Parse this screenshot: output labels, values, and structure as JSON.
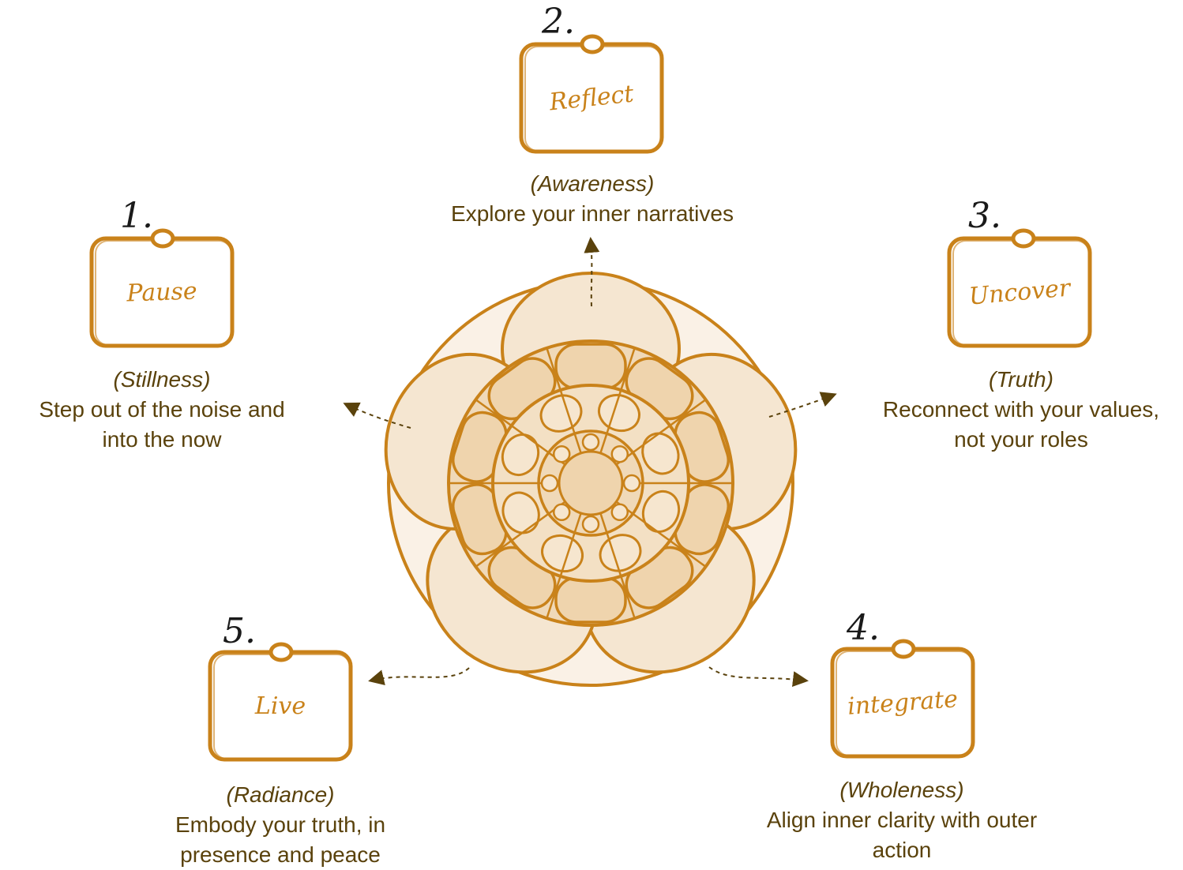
{
  "colors": {
    "accent": "#c9821a",
    "petal_light": "#f5e6d1",
    "petal_mid": "#efd4ad",
    "text": "#5a420c",
    "arrow": "#5a420c",
    "number": "#1a1a1a"
  },
  "steps": [
    {
      "number": "1.",
      "word": "Pause",
      "subtitle": "(Stillness)",
      "desc_line1": "Step out of the noise and",
      "desc_line2": "into the now"
    },
    {
      "number": "2.",
      "word": "Reflect",
      "subtitle": "(Awareness)",
      "desc_line1": "Explore your inner narratives",
      "desc_line2": ""
    },
    {
      "number": "3.",
      "word": "Uncover",
      "subtitle": "(Truth)",
      "desc_line1": "Reconnect with your values,",
      "desc_line2": "not your roles"
    },
    {
      "number": "4.",
      "word": "integrate",
      "subtitle": "(Wholeness)",
      "desc_line1": "Align inner clarity with outer",
      "desc_line2": "action"
    },
    {
      "number": "5.",
      "word": "Live",
      "subtitle": "(Radiance)",
      "desc_line1": "Embody your truth, in",
      "desc_line2": "presence and peace"
    }
  ]
}
